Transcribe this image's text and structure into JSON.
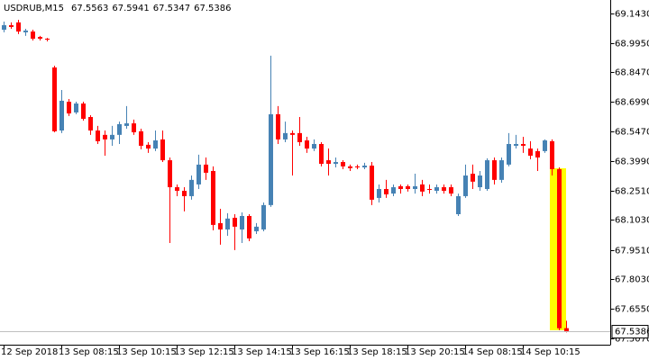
{
  "chart_data": {
    "type": "candlestick",
    "title": "USDRUB,M15",
    "up_color": "#4682b4",
    "down_color": "#ff0000",
    "categories": [
      "12 Sep 2018",
      null,
      null,
      null,
      null,
      null,
      null,
      null,
      "13 Sep 08:15",
      null,
      null,
      null,
      null,
      null,
      null,
      null,
      "13 Sep 10:15",
      null,
      null,
      null,
      null,
      null,
      null,
      null,
      "13 Sep 12:15",
      null,
      null,
      null,
      null,
      null,
      null,
      null,
      "13 Sep 14:15",
      null,
      null,
      null,
      null,
      null,
      null,
      null,
      "13 Sep 16:15",
      null,
      null,
      null,
      null,
      null,
      null,
      null,
      "13 Sep 18:15",
      null,
      null,
      null,
      null,
      null,
      null,
      null,
      "13 Sep 20:15",
      null,
      null,
      null,
      null,
      null,
      null,
      null,
      "14 Sep 08:15",
      null,
      null,
      null,
      null,
      null,
      null,
      null,
      "14 Sep 10:15",
      null,
      null,
      null,
      null,
      null,
      null
    ],
    "open": [
      69.061,
      69.084,
      69.098,
      69.048,
      69.052,
      69.025,
      69.016,
      68.871,
      68.553,
      68.698,
      68.644,
      68.689,
      68.621,
      68.553,
      68.531,
      68.508,
      68.531,
      68.576,
      68.589,
      68.549,
      68.481,
      68.462,
      68.508,
      68.403,
      68.267,
      68.249,
      68.222,
      68.281,
      68.381,
      68.349,
      68.086,
      68.054,
      68.113,
      68.054,
      68.122,
      68.045,
      68.054,
      68.177,
      68.635,
      68.508,
      68.54,
      68.54,
      68.503,
      68.462,
      68.485,
      68.403,
      68.385,
      68.394,
      68.372,
      68.372,
      68.367,
      68.376,
      68.213,
      68.258,
      68.235,
      68.272,
      68.272,
      68.258,
      68.281,
      68.258,
      68.249,
      68.267,
      68.267,
      68.131,
      68.222,
      68.335,
      68.267,
      68.258,
      68.403,
      68.304,
      68.381,
      68.476,
      68.485,
      68.462,
      68.449,
      68.449,
      68.499,
      68.358,
      67.5563
    ],
    "high": [
      69.102,
      69.098,
      69.111,
      69.066,
      69.061,
      69.03,
      69.02,
      68.88,
      68.757,
      68.712,
      68.698,
      68.698,
      68.63,
      68.576,
      68.553,
      68.576,
      68.598,
      68.676,
      68.608,
      68.562,
      68.494,
      68.553,
      68.553,
      68.417,
      68.281,
      68.267,
      68.326,
      68.431,
      68.417,
      68.372,
      68.158,
      68.136,
      68.131,
      68.14,
      68.131,
      68.086,
      68.19,
      68.93,
      68.676,
      68.598,
      68.553,
      68.621,
      68.521,
      68.508,
      68.494,
      68.462,
      68.417,
      68.403,
      68.381,
      68.381,
      68.39,
      68.394,
      68.281,
      68.304,
      68.281,
      68.281,
      68.281,
      68.335,
      68.304,
      68.281,
      68.281,
      68.281,
      68.281,
      68.235,
      68.381,
      68.381,
      68.349,
      68.413,
      68.417,
      68.417,
      68.54,
      68.531,
      68.521,
      68.499,
      68.462,
      68.508,
      68.508,
      68.367,
      67.5941
    ],
    "low": [
      69.048,
      69.066,
      69.039,
      69.03,
      69.007,
      69.007,
      69.002,
      68.544,
      68.54,
      68.626,
      68.635,
      68.603,
      68.531,
      68.485,
      68.426,
      68.476,
      68.485,
      68.562,
      68.531,
      68.458,
      68.44,
      68.449,
      68.394,
      67.986,
      68.222,
      68.145,
      68.204,
      68.258,
      68.304,
      68.05,
      67.977,
      68.022,
      67.95,
      67.986,
      67.995,
      68.031,
      68.045,
      68.168,
      68.485,
      68.494,
      68.326,
      68.476,
      68.44,
      68.449,
      68.372,
      68.326,
      68.367,
      68.358,
      68.349,
      68.358,
      68.358,
      68.177,
      68.19,
      68.213,
      68.222,
      68.235,
      68.245,
      68.235,
      68.222,
      68.235,
      68.235,
      68.235,
      68.222,
      68.122,
      68.213,
      68.258,
      68.249,
      68.249,
      68.281,
      68.29,
      68.372,
      68.462,
      68.44,
      68.408,
      68.349,
      68.44,
      68.326,
      67.546,
      67.5347
    ],
    "close": [
      69.084,
      69.075,
      69.052,
      69.057,
      69.016,
      69.016,
      69.011,
      68.549,
      68.703,
      68.639,
      68.689,
      68.612,
      68.553,
      68.499,
      68.508,
      68.531,
      68.585,
      68.589,
      68.544,
      68.476,
      68.462,
      68.503,
      68.403,
      68.267,
      68.249,
      68.222,
      68.304,
      68.381,
      68.34,
      68.077,
      68.054,
      68.109,
      68.068,
      68.122,
      68.009,
      68.068,
      68.177,
      68.635,
      68.508,
      68.54,
      68.531,
      68.494,
      68.462,
      68.485,
      68.385,
      68.385,
      68.394,
      68.372,
      68.363,
      68.367,
      68.376,
      68.204,
      68.258,
      68.231,
      68.267,
      68.258,
      68.258,
      68.272,
      68.245,
      68.254,
      68.267,
      68.249,
      68.235,
      68.222,
      68.326,
      68.295,
      68.326,
      68.403,
      68.304,
      68.403,
      68.485,
      68.485,
      68.476,
      68.426,
      68.417,
      68.503,
      68.358,
      67.556,
      67.5386
    ],
    "ylim": [
      67.473,
      69.211
    ],
    "yticks": [
      {
        "value": 69.143,
        "label": "69.1430"
      },
      {
        "value": 68.995,
        "label": "68.9950"
      },
      {
        "value": 68.847,
        "label": "68.8470"
      },
      {
        "value": 68.699,
        "label": "68.6990"
      },
      {
        "value": 68.547,
        "label": "68.5470"
      },
      {
        "value": 68.399,
        "label": "68.3990"
      },
      {
        "value": 68.251,
        "label": "68.2510"
      },
      {
        "value": 68.103,
        "label": "68.1030"
      },
      {
        "value": 67.951,
        "label": "67.9510"
      },
      {
        "value": 67.803,
        "label": "67.8030"
      },
      {
        "value": 67.655,
        "label": "67.6550"
      },
      {
        "value": 67.507,
        "label": "67.5070"
      }
    ]
  }
}
